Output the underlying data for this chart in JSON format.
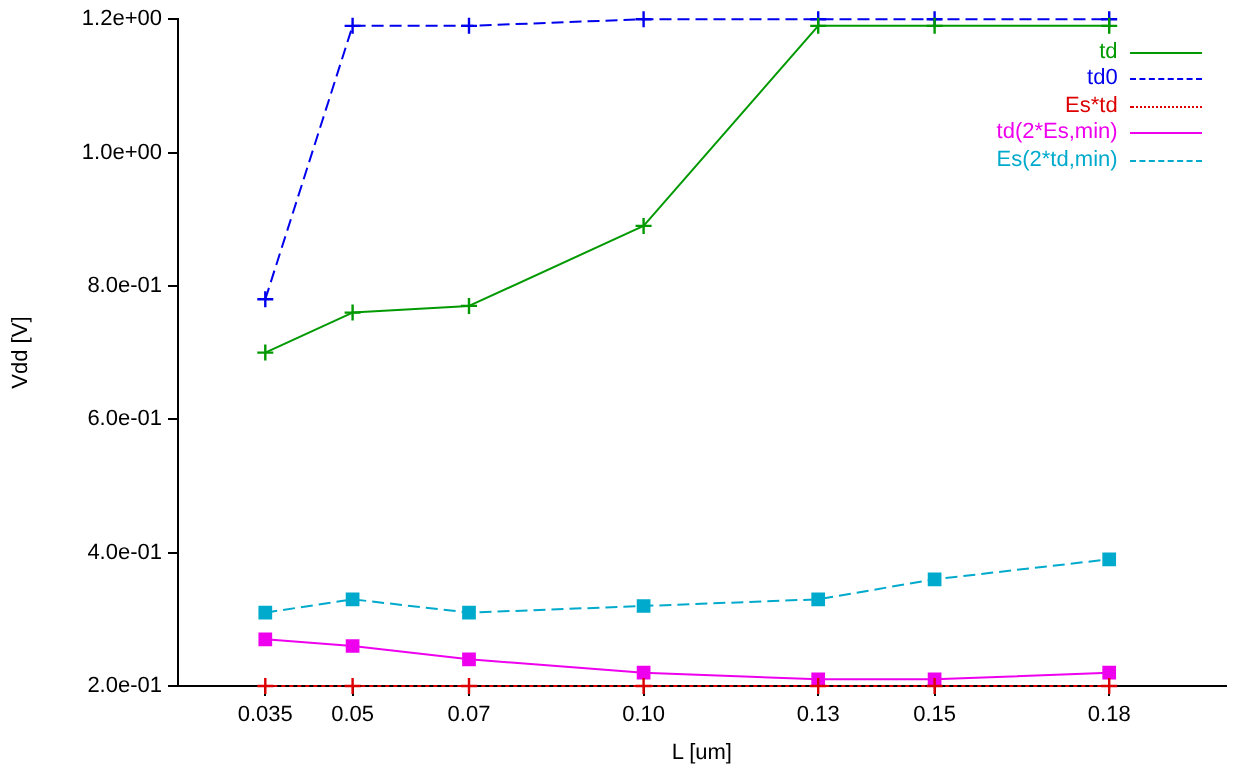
{
  "chart_data": {
    "type": "line",
    "xlabel": "L [um]",
    "ylabel": "Vdd [V]",
    "x": [
      0.035,
      0.05,
      0.07,
      0.1,
      0.13,
      0.15,
      0.18
    ],
    "xlim": [
      0.02,
      0.2
    ],
    "xticks": [
      0.035,
      0.05,
      0.07,
      {
        "value": 0.1,
        "label": "0.10"
      },
      0.13,
      0.15,
      0.18
    ],
    "ylim": [
      0.2,
      1.2
    ],
    "yticks": [
      {
        "value": 0.2,
        "label": "2.0e-01"
      },
      {
        "value": 0.4,
        "label": "4.0e-01"
      },
      {
        "value": 0.6,
        "label": "6.0e-01"
      },
      {
        "value": 0.8,
        "label": "8.0e-01"
      },
      {
        "value": 1.0,
        "label": "1.0e+00"
      },
      {
        "value": 1.2,
        "label": "1.2e+00"
      }
    ],
    "grid": false,
    "legend": "top right",
    "series": [
      {
        "name": "td",
        "color": "#009900",
        "marker": "cross",
        "line_style": "solid",
        "values": [
          0.7,
          0.76,
          0.77,
          0.89,
          1.19,
          1.19,
          1.19
        ]
      },
      {
        "name": "td0",
        "color": "#0000ee",
        "marker": "cross",
        "line_style": "dashed",
        "values": [
          0.78,
          1.19,
          1.19,
          1.2,
          1.2,
          1.2,
          1.2
        ]
      },
      {
        "name": "Es*td",
        "color": "#dd0000",
        "marker": "cross",
        "line_style": "dotted",
        "values": [
          0.2,
          0.2,
          0.2,
          0.2,
          0.2,
          0.2,
          0.2
        ]
      },
      {
        "name": "td(2*Es,min)",
        "color": "#ee00ee",
        "marker": "square",
        "line_style": "solid",
        "values": [
          0.27,
          0.26,
          0.24,
          0.22,
          0.21,
          0.21,
          0.22
        ]
      },
      {
        "name": "Es(2*td,min)",
        "color": "#00aacc",
        "marker": "square",
        "line_style": "dashed",
        "values": [
          0.31,
          0.33,
          0.31,
          0.32,
          0.33,
          0.36,
          0.39
        ]
      }
    ]
  }
}
